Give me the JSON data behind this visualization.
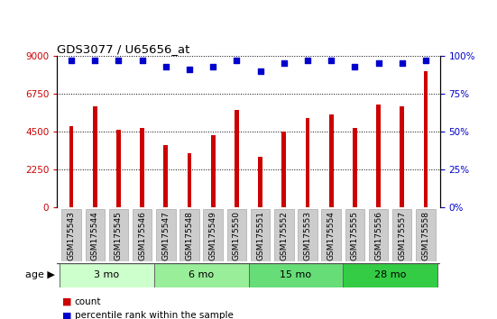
{
  "title": "GDS3077 / U65656_at",
  "categories": [
    "GSM175543",
    "GSM175544",
    "GSM175545",
    "GSM175546",
    "GSM175547",
    "GSM175548",
    "GSM175549",
    "GSM175550",
    "GSM175551",
    "GSM175552",
    "GSM175553",
    "GSM175554",
    "GSM175555",
    "GSM175556",
    "GSM175557",
    "GSM175558"
  ],
  "bar_values": [
    4800,
    6000,
    4600,
    4700,
    3700,
    3200,
    4300,
    5800,
    3000,
    4500,
    5300,
    5500,
    4700,
    6100,
    6000,
    8100
  ],
  "bar_color": "#cc0000",
  "dot_values": [
    97,
    97,
    97,
    97,
    93,
    91,
    93,
    97,
    90,
    95,
    97,
    97,
    93,
    95,
    95,
    97
  ],
  "dot_color": "#0000cc",
  "ylim_left": [
    0,
    9000
  ],
  "ylim_right": [
    0,
    100
  ],
  "yticks_left": [
    0,
    2250,
    4500,
    6750,
    9000
  ],
  "yticks_right": [
    0,
    25,
    50,
    75,
    100
  ],
  "age_groups": [
    {
      "label": "3 mo",
      "start": 0,
      "end": 3,
      "color": "#ccffcc"
    },
    {
      "label": "6 mo",
      "start": 4,
      "end": 7,
      "color": "#99ee99"
    },
    {
      "label": "15 mo",
      "start": 8,
      "end": 11,
      "color": "#66dd77"
    },
    {
      "label": "28 mo",
      "start": 12,
      "end": 15,
      "color": "#33cc44"
    }
  ],
  "age_label": "age",
  "legend_count_label": "count",
  "legend_pct_label": "percentile rank within the sample",
  "bar_color_red": "#cc0000",
  "dot_color_blue": "#0000cc",
  "grid_color": "#000000",
  "xticklabel_bg": "#cccccc",
  "bar_width": 0.18
}
